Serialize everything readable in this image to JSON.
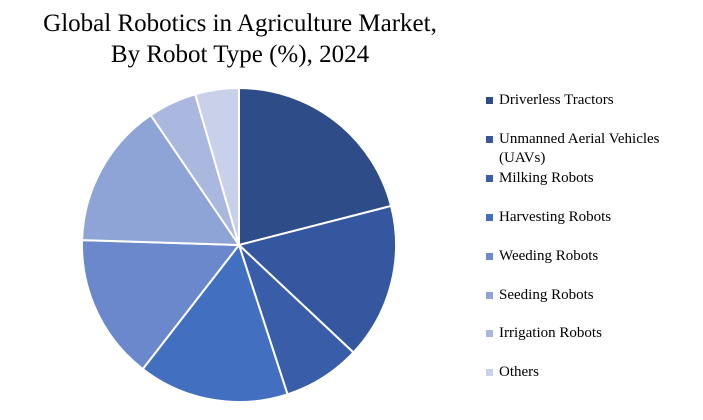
{
  "chart_data": {
    "type": "pie",
    "title": "Global Robotics in Agriculture Market, By Robot Type (%), 2024",
    "categories": [
      "Driverless Tractors",
      "Unmanned Aerial Vehicles (UAVs)",
      "Milking Robots",
      "Harvesting Robots",
      "Weeding Robots",
      "Seeding Robots",
      "Irrigation Robots",
      "Others"
    ],
    "values": [
      21,
      16,
      8,
      15.5,
      15,
      15,
      5,
      4.5
    ],
    "colors": [
      "#2e4c87",
      "#3457a0",
      "#3a5daa",
      "#436fc0",
      "#6b88cc",
      "#8ea3d6",
      "#aab8e0",
      "#c8d0ea"
    ],
    "legend_position": "right"
  }
}
